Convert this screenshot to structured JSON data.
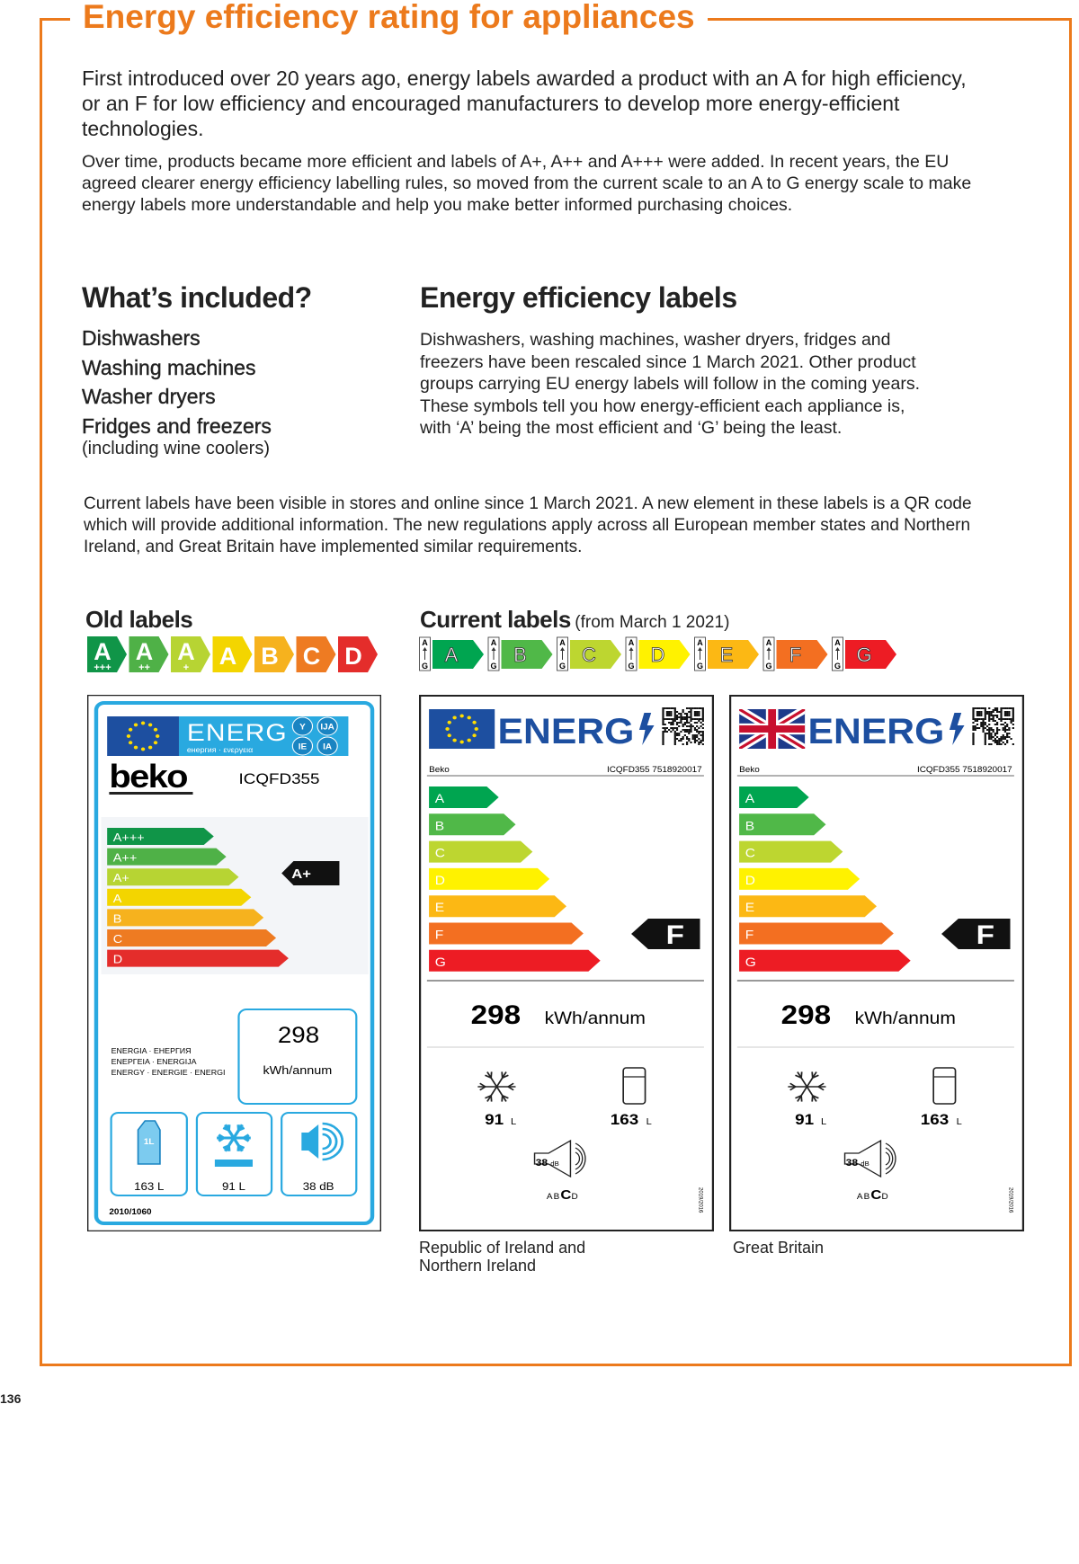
{
  "header": {
    "title": "Energy efficiency rating for appliances"
  },
  "intro": {
    "lead": "First introduced over 20 years ago, energy labels awarded a product with an A for high efficiency, or an F for low efficiency and encouraged manufacturers to develop more energy-efficient technologies.",
    "body": "Over time, products became more efficient and labels of A+, A++ and A+++ were added. In recent years, the EU agreed clearer energy efficiency labelling rules, so moved from the current scale to an A to G energy scale to make energy labels more understandable and help you make better informed purchasing choices."
  },
  "included": {
    "title": "What’s included?",
    "items": [
      "Dishwashers",
      "Washing machines",
      "Washer dryers",
      "Fridges and freezers"
    ],
    "note": "(including wine coolers)"
  },
  "labels_info": {
    "title": "Energy efficiency labels",
    "body": "Dishwashers, washing machines, washer dryers, fridges and freezers have been rescaled since 1 March 2021. Other product groups carrying EU energy labels will follow in the coming years. These symbols tell you how energy-efficient each appliance is, with ‘A’ being the most efficient and ‘G’ being the least."
  },
  "current_note": "Current labels have been visible in stores and online since 1 March 2021. A new element in these labels is a QR code which will provide additional information. The new regulations apply across all European member states and Northern Ireland, and Great Britain have implemented similar requirements.",
  "old_scale": {
    "title": "Old labels",
    "classes": [
      {
        "letter": "A",
        "sign": "+++",
        "color": "#109548"
      },
      {
        "letter": "A",
        "sign": "++",
        "color": "#4fb147"
      },
      {
        "letter": "A",
        "sign": "+",
        "color": "#b7d433"
      },
      {
        "letter": "A",
        "color": "#f3d500"
      },
      {
        "letter": "B",
        "color": "#f6b21e"
      },
      {
        "letter": "C",
        "color": "#ee7b22"
      },
      {
        "letter": "D",
        "color": "#e42d2b"
      }
    ]
  },
  "current_scale": {
    "title": "Current labels",
    "subtitle": "(from March 1 2021)",
    "scale_top": "A",
    "scale_bottom": "G",
    "classes": [
      {
        "letter": "A",
        "color": "#00a550"
      },
      {
        "letter": "B",
        "color": "#50b848"
      },
      {
        "letter": "C",
        "color": "#bdd630"
      },
      {
        "letter": "D",
        "color": "#fff200"
      },
      {
        "letter": "E",
        "color": "#fcb814"
      },
      {
        "letter": "F",
        "color": "#f36f21"
      },
      {
        "letter": "G",
        "color": "#ed1c24"
      }
    ]
  },
  "old_label": {
    "energy": "ENERG",
    "languages": "енергия · ενεργεια",
    "badges": [
      "Y",
      "IJA",
      "IE",
      "IA"
    ],
    "brand": "beko",
    "model": "ICQFD355",
    "classes": [
      "A+++",
      "A++",
      "A+",
      "A",
      "B",
      "C",
      "D"
    ],
    "rating": "A+",
    "consumption": "298",
    "consumption_unit": "kWh/annum",
    "names": [
      "ENERGIA · ЕНЕРГИЯ",
      "ΕΝΕΡΓΕΙΑ · ENERGIJA",
      "ENERGY · ENERGIE · ENERGI"
    ],
    "carton": "1L",
    "fridge": "163 L",
    "freezer": "91 L",
    "noise": "38 dB",
    "regulation": "2010/1060"
  },
  "new_labels": [
    {
      "flag": "eu",
      "energy": "ENERG",
      "brand": "Beko",
      "model": "ICQFD355 7518920017",
      "classes": [
        "A",
        "B",
        "C",
        "D",
        "E",
        "F",
        "G"
      ],
      "rating": "F",
      "consumption": "298",
      "consumption_unit": "kWh/annum",
      "freezer": "91",
      "fridge": "163",
      "volume_unit": "L",
      "noise": "38",
      "noise_unit": "dB",
      "noise_classes": [
        "A",
        "B",
        "C",
        "D"
      ],
      "noise_class": "C",
      "regulation": "2019/2016",
      "caption": "Republic of Ireland and Northern Ireland"
    },
    {
      "flag": "uk",
      "energy": "ENERG",
      "brand": "Beko",
      "model": "ICQFD355 7518920017",
      "classes": [
        "A",
        "B",
        "C",
        "D",
        "E",
        "F",
        "G"
      ],
      "rating": "F",
      "consumption": "298",
      "consumption_unit": "kWh/annum",
      "freezer": "91",
      "fridge": "163",
      "volume_unit": "L",
      "noise": "38",
      "noise_unit": "dB",
      "noise_classes": [
        "A",
        "B",
        "C",
        "D"
      ],
      "noise_class": "C",
      "regulation": "2019/2016",
      "caption": "Great Britain"
    }
  ],
  "footer": {
    "page": "136"
  }
}
